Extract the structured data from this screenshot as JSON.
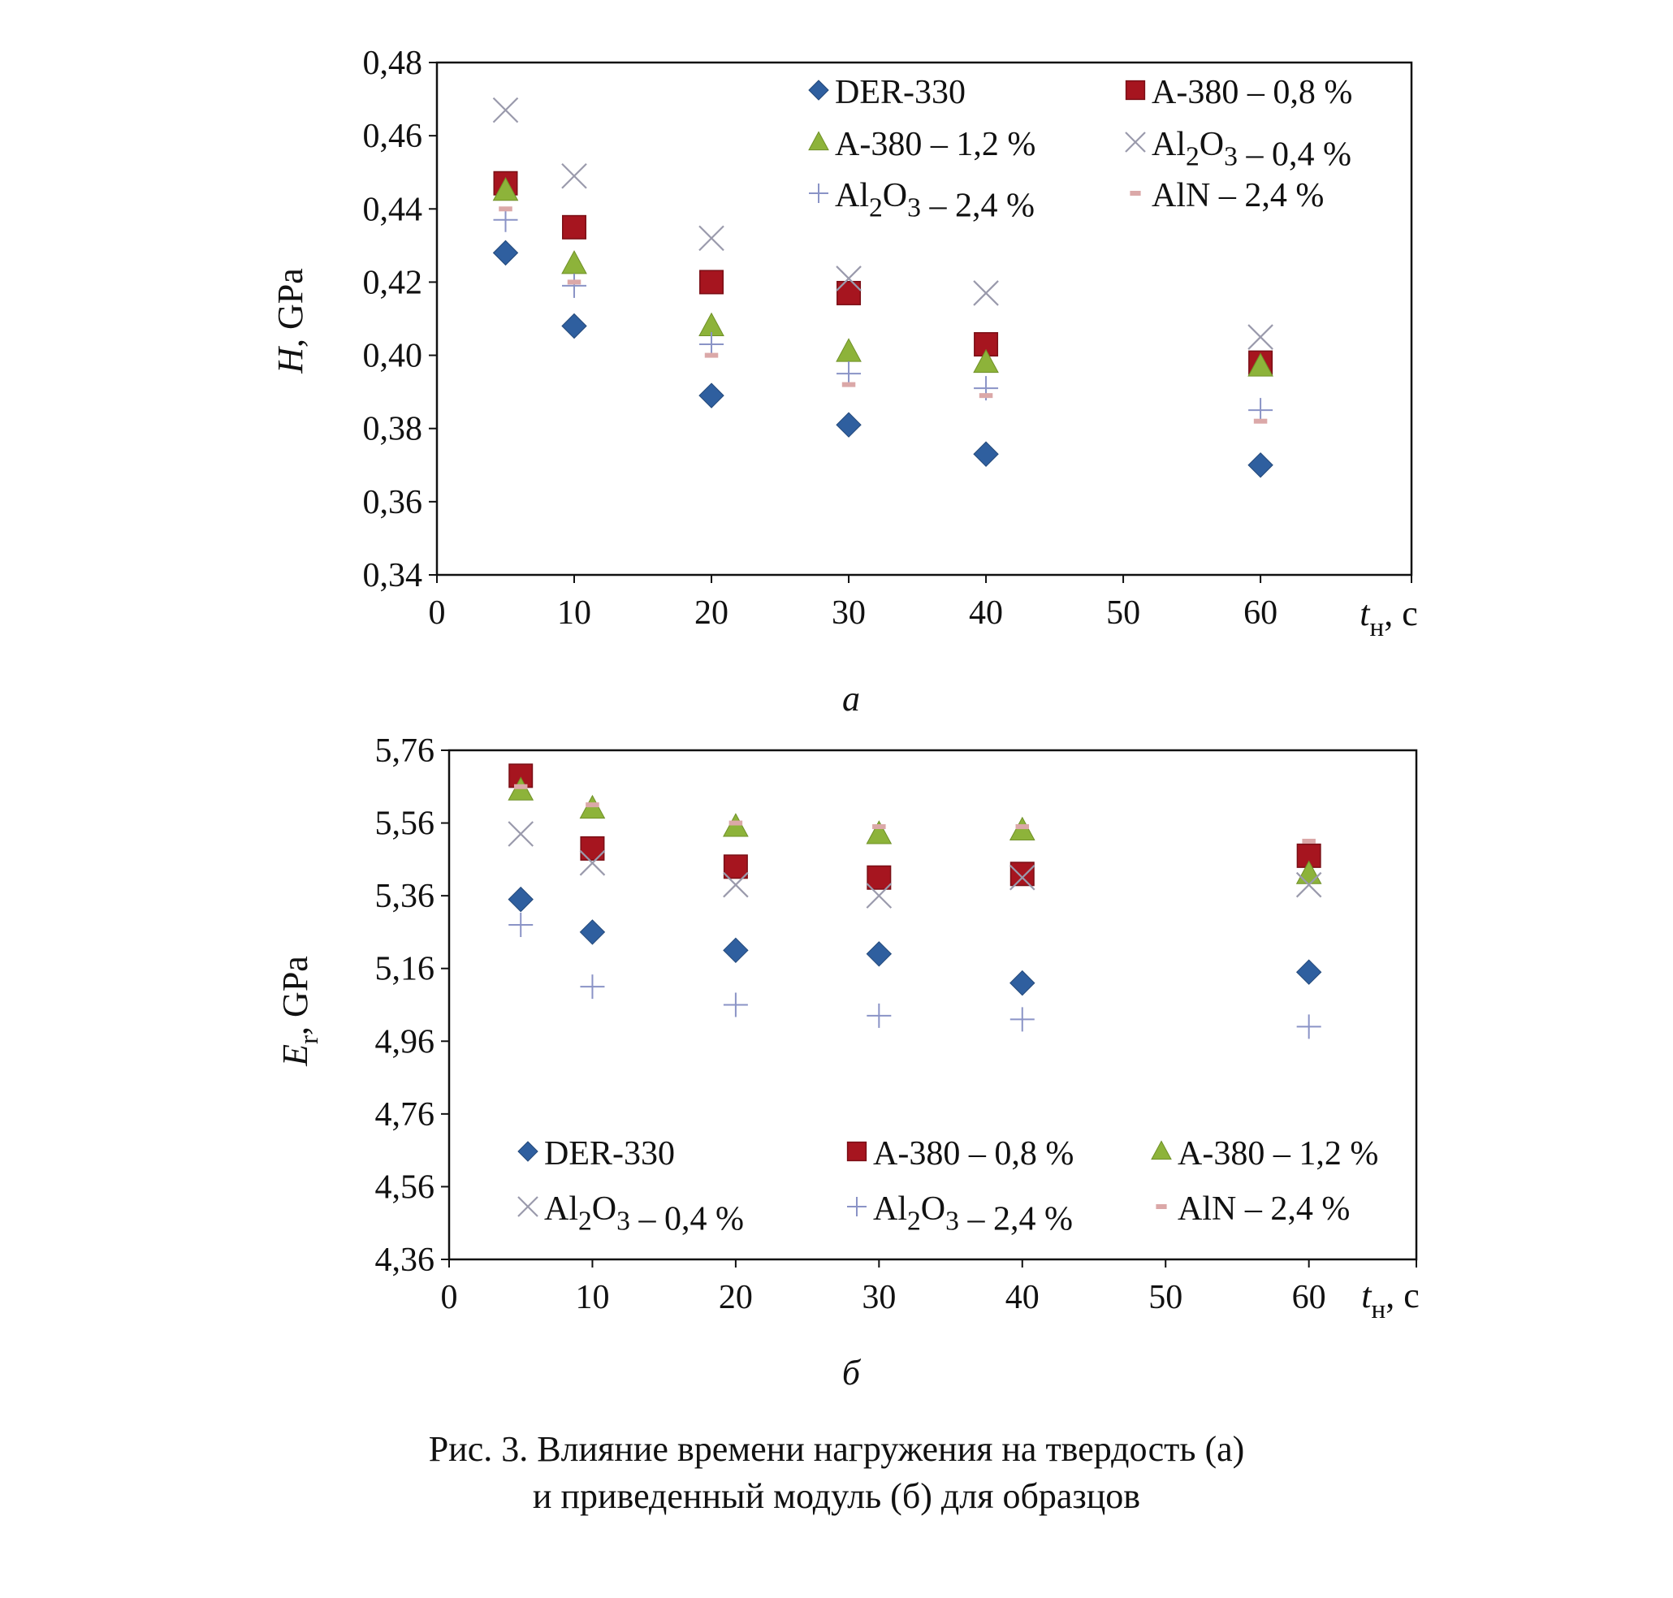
{
  "chart_data": [
    {
      "type": "scatter",
      "panel_label": "а",
      "ylabel": "H, GPa",
      "xlabel": "tн, с",
      "xlim": [
        0,
        71
      ],
      "ylim": [
        0.34,
        0.48
      ],
      "xticks": [
        0,
        10,
        20,
        30,
        40,
        50,
        60
      ],
      "yticks": [
        0.34,
        0.36,
        0.38,
        0.4,
        0.42,
        0.44,
        0.46,
        0.48
      ],
      "ytick_labels": [
        "0,34",
        "0,36",
        "0,38",
        "0,40",
        "0,42",
        "0,44",
        "0,46",
        "0,48"
      ],
      "legend_position": "top-right",
      "grid": false,
      "series": [
        {
          "name": "DER-330",
          "marker": "diamond",
          "color": "#2f5f9f",
          "x": [
            5,
            10,
            20,
            30,
            40,
            60
          ],
          "y": [
            0.428,
            0.408,
            0.389,
            0.381,
            0.373,
            0.37
          ]
        },
        {
          "name": "A-380 – 0,8 %",
          "marker": "square",
          "color": "#a6151f",
          "x": [
            5,
            10,
            20,
            30,
            40,
            60
          ],
          "y": [
            0.447,
            0.435,
            0.42,
            0.417,
            0.403,
            0.398
          ]
        },
        {
          "name": "A-380 – 1,2 %",
          "marker": "triangle",
          "color": "#8db33a",
          "x": [
            5,
            10,
            20,
            30,
            40,
            60
          ],
          "y": [
            0.445,
            0.425,
            0.408,
            0.401,
            0.398,
            0.397
          ]
        },
        {
          "name": "Al2O3 – 0,4 %",
          "marker": "x",
          "color": "#9a9aac",
          "x": [
            5,
            10,
            20,
            30,
            40,
            60
          ],
          "y": [
            0.467,
            0.449,
            0.432,
            0.421,
            0.417,
            0.405
          ]
        },
        {
          "name": "Al2O3 – 2,4 %",
          "marker": "plus",
          "color": "#8a93c6",
          "x": [
            5,
            10,
            20,
            30,
            40,
            60
          ],
          "y": [
            0.437,
            0.419,
            0.403,
            0.395,
            0.391,
            0.385
          ]
        },
        {
          "name": "AlN – 2,4 %",
          "marker": "dash",
          "color": "#dba8a8",
          "x": [
            5,
            10,
            20,
            30,
            40,
            60
          ],
          "y": [
            0.44,
            0.42,
            0.4,
            0.392,
            0.389,
            0.382
          ]
        }
      ]
    },
    {
      "type": "scatter",
      "panel_label": "б",
      "ylabel": "Er, GPa",
      "xlabel": "tн, с",
      "xlim": [
        0,
        67.5
      ],
      "ylim": [
        4.36,
        5.76
      ],
      "xticks": [
        0,
        10,
        20,
        30,
        40,
        50,
        60
      ],
      "yticks": [
        4.36,
        4.56,
        4.76,
        4.96,
        5.16,
        5.36,
        5.56,
        5.76
      ],
      "ytick_labels": [
        "4,36",
        "4,56",
        "4,76",
        "4,96",
        "5,16",
        "5,36",
        "5,56",
        "5,76"
      ],
      "legend_position": "bottom",
      "grid": false,
      "series": [
        {
          "name": "DER-330",
          "marker": "diamond",
          "color": "#2f5f9f",
          "x": [
            5,
            10,
            20,
            30,
            40,
            60
          ],
          "y": [
            5.35,
            5.26,
            5.21,
            5.2,
            5.12,
            5.15
          ]
        },
        {
          "name": "A-380 – 0,8 %",
          "marker": "square",
          "color": "#a6151f",
          "x": [
            5,
            10,
            20,
            30,
            40,
            60
          ],
          "y": [
            5.69,
            5.49,
            5.44,
            5.41,
            5.42,
            5.47
          ]
        },
        {
          "name": "A-380 – 1,2 %",
          "marker": "triangle",
          "color": "#8db33a",
          "x": [
            5,
            10,
            20,
            30,
            40,
            60
          ],
          "y": [
            5.65,
            5.6,
            5.55,
            5.53,
            5.54,
            5.42
          ]
        },
        {
          "name": "Al2O3 – 0,4 %",
          "marker": "x",
          "color": "#9a9aac",
          "x": [
            5,
            10,
            20,
            30,
            40,
            60
          ],
          "y": [
            5.53,
            5.45,
            5.39,
            5.36,
            5.41,
            5.39
          ]
        },
        {
          "name": "Al2O3 – 2,4 %",
          "marker": "plus",
          "color": "#8a93c6",
          "x": [
            5,
            10,
            20,
            30,
            40,
            60
          ],
          "y": [
            5.28,
            5.11,
            5.06,
            5.03,
            5.02,
            5.0
          ]
        },
        {
          "name": "AlN – 2,4 %",
          "marker": "dash",
          "color": "#dba8a8",
          "x": [
            5,
            10,
            20,
            30,
            40,
            60
          ],
          "y": [
            5.66,
            5.61,
            5.56,
            5.55,
            5.55,
            5.51
          ]
        }
      ]
    }
  ],
  "caption": {
    "line1": "Рис. 3. Влияние времени нагружения на твердость (а)",
    "line2": "и приведенный модуль (б) для образцов"
  }
}
